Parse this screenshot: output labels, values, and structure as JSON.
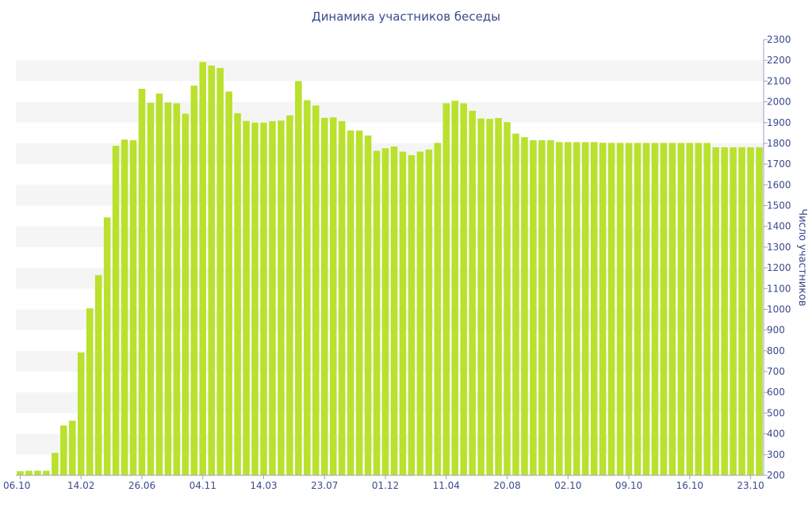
{
  "chart_data": {
    "type": "bar",
    "title": "Динамика участников беседы",
    "xlabel": "",
    "ylabel": "Число участников",
    "ylim": [
      200,
      2300
    ],
    "y_ticks": [
      200,
      300,
      400,
      500,
      600,
      700,
      800,
      900,
      1000,
      1100,
      1200,
      1300,
      1400,
      1500,
      1600,
      1700,
      1800,
      1900,
      2000,
      2100,
      2200,
      2300
    ],
    "x_tick_labels": [
      {
        "index": 0,
        "label": "06.10"
      },
      {
        "index": 7,
        "label": "14.02"
      },
      {
        "index": 14,
        "label": "26.06"
      },
      {
        "index": 21,
        "label": "04.11"
      },
      {
        "index": 28,
        "label": "14.03"
      },
      {
        "index": 35,
        "label": "23.07"
      },
      {
        "index": 42,
        "label": "01.12"
      },
      {
        "index": 49,
        "label": "11.04"
      },
      {
        "index": 56,
        "label": "20.08"
      },
      {
        "index": 63,
        "label": "02.10"
      },
      {
        "index": 70,
        "label": "09.10"
      },
      {
        "index": 77,
        "label": "16.10"
      },
      {
        "index": 84,
        "label": "23.10"
      }
    ],
    "bar_color": "#b9e12d",
    "band_color": "#f5f5f5",
    "grid": "alternating horizontal bands",
    "y_axis_position": "right",
    "values": [
      220,
      222,
      222,
      222,
      308,
      440,
      463,
      792,
      1005,
      1165,
      1443,
      1788,
      1818,
      1815,
      2063,
      1995,
      2040,
      1997,
      1993,
      1943,
      2078,
      2192,
      2175,
      2163,
      2050,
      1945,
      1908,
      1900,
      1900,
      1907,
      1910,
      1935,
      2100,
      2008,
      1982,
      1923,
      1925,
      1907,
      1862,
      1862,
      1838,
      1764,
      1776,
      1785,
      1760,
      1743,
      1760,
      1770,
      1802,
      1993,
      2005,
      1993,
      1957,
      1920,
      1918,
      1922,
      1902,
      1847,
      1830,
      1815,
      1815,
      1815,
      1806,
      1806,
      1806,
      1806,
      1806,
      1803,
      1802,
      1802,
      1802,
      1802,
      1802,
      1802,
      1802,
      1802,
      1802,
      1802,
      1802,
      1802,
      1781,
      1781,
      1781,
      1781,
      1781,
      1781
    ]
  }
}
